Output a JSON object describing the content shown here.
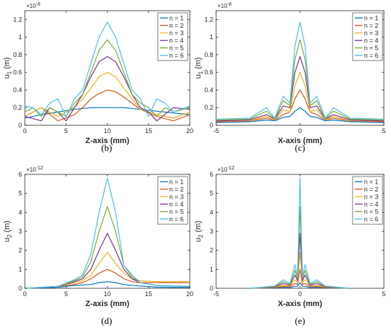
{
  "chart_data": [
    {
      "id": "b",
      "type": "line",
      "caption": "(b)",
      "xlabel": "Z-axis (mm)",
      "ylabel": "u",
      "ylabel_sub": "1",
      "ylabel_unit": " (m)",
      "exponent": "×10",
      "exponent_power": "-8",
      "xlim": [
        0,
        20
      ],
      "ylim": [
        0,
        1.3
      ],
      "xticks": [
        0,
        5,
        10,
        15,
        20
      ],
      "yticks": [
        0,
        0.2,
        0.4,
        0.6,
        0.8,
        1,
        1.2
      ],
      "legend": "top-right",
      "series": [
        {
          "name": "n = 1",
          "color": "#0072BD",
          "x": [
            0,
            2,
            4,
            6,
            8,
            10,
            12,
            14,
            16,
            18,
            20
          ],
          "y": [
            0.08,
            0.12,
            0.15,
            0.18,
            0.2,
            0.2,
            0.2,
            0.18,
            0.16,
            0.14,
            0.12
          ]
        },
        {
          "name": "n = 2",
          "color": "#D95319",
          "x": [
            0,
            2,
            4,
            6,
            7,
            8,
            9,
            10,
            11,
            12,
            13,
            14,
            16,
            18,
            20
          ],
          "y": [
            0.1,
            0.2,
            0.05,
            0.12,
            0.2,
            0.3,
            0.36,
            0.4,
            0.38,
            0.32,
            0.25,
            0.18,
            0.1,
            0.05,
            0.12
          ]
        },
        {
          "name": "n = 3",
          "color": "#EDB120",
          "x": [
            0,
            2,
            4,
            6,
            7,
            8,
            9,
            10,
            11,
            12,
            13,
            14,
            16,
            18,
            20
          ],
          "y": [
            0.1,
            0.2,
            0.1,
            0.2,
            0.3,
            0.42,
            0.55,
            0.6,
            0.55,
            0.42,
            0.3,
            0.18,
            0.12,
            0.08,
            0.15
          ]
        },
        {
          "name": "n = 4",
          "color": "#7E2F8E",
          "x": [
            0,
            2,
            3,
            4,
            5,
            6,
            7,
            8,
            9,
            10,
            11,
            12,
            13,
            14,
            15,
            16,
            18,
            20
          ],
          "y": [
            0.1,
            0.05,
            0.2,
            0.15,
            0.05,
            0.2,
            0.35,
            0.55,
            0.72,
            0.78,
            0.72,
            0.55,
            0.35,
            0.2,
            0.15,
            0.05,
            0.2,
            0.18
          ]
        },
        {
          "name": "n = 5",
          "color": "#77AC30",
          "x": [
            0,
            1,
            2,
            3,
            4,
            5,
            6,
            7,
            8,
            9,
            10,
            11,
            12,
            13,
            14,
            15,
            16,
            17,
            18,
            20
          ],
          "y": [
            0.15,
            0.2,
            0.1,
            0.2,
            0.15,
            0.1,
            0.25,
            0.35,
            0.6,
            0.85,
            0.97,
            0.85,
            0.6,
            0.35,
            0.25,
            0.2,
            0.1,
            0.2,
            0.15,
            0.2
          ]
        },
        {
          "name": "n = 6",
          "color": "#4DBEEE",
          "x": [
            0,
            1,
            2,
            3,
            4,
            5,
            6,
            7,
            8,
            9,
            10,
            11,
            12,
            13,
            14,
            15,
            16,
            17,
            18,
            20
          ],
          "y": [
            0.22,
            0.2,
            0.12,
            0.25,
            0.3,
            0.1,
            0.3,
            0.4,
            0.7,
            1.0,
            1.17,
            1.0,
            0.7,
            0.4,
            0.3,
            0.1,
            0.3,
            0.25,
            0.15,
            0.22
          ]
        }
      ]
    },
    {
      "id": "c",
      "type": "line",
      "caption": "(c)",
      "xlabel": "X-axis (mm)",
      "ylabel": "u",
      "ylabel_sub": "1",
      "ylabel_unit": " (m)",
      "exponent": "×10",
      "exponent_power": "-8",
      "xlim": [
        -5,
        5
      ],
      "ylim": [
        0,
        1.3
      ],
      "xticks": [
        -5,
        0,
        5
      ],
      "yticks": [
        0,
        0.2,
        0.4,
        0.6,
        0.8,
        1,
        1.2
      ],
      "legend": "top-right",
      "series": [
        {
          "name": "n = 1",
          "color": "#0072BD",
          "x": [
            -5,
            -3,
            -2,
            -1.5,
            -1,
            -0.6,
            -0.3,
            0,
            0.3,
            0.6,
            1,
            1.5,
            2,
            3,
            5
          ],
          "y": [
            0.03,
            0.04,
            0.06,
            0.05,
            0.09,
            0.1,
            0.16,
            0.2,
            0.16,
            0.1,
            0.09,
            0.05,
            0.06,
            0.04,
            0.03
          ]
        },
        {
          "name": "n = 2",
          "color": "#D95319",
          "x": [
            -5,
            -3,
            -2,
            -1.5,
            -1,
            -0.6,
            -0.3,
            0,
            0.3,
            0.6,
            1,
            1.5,
            2,
            3,
            5
          ],
          "y": [
            0.04,
            0.05,
            0.08,
            0.06,
            0.12,
            0.15,
            0.3,
            0.4,
            0.3,
            0.15,
            0.12,
            0.06,
            0.08,
            0.05,
            0.04
          ]
        },
        {
          "name": "n = 3",
          "color": "#EDB120",
          "x": [
            -5,
            -3,
            -2,
            -1.5,
            -1,
            -0.6,
            -0.3,
            0,
            0.3,
            0.6,
            1,
            1.5,
            2,
            3,
            5
          ],
          "y": [
            0.05,
            0.05,
            0.1,
            0.06,
            0.18,
            0.15,
            0.45,
            0.6,
            0.45,
            0.15,
            0.18,
            0.06,
            0.1,
            0.05,
            0.05
          ]
        },
        {
          "name": "n = 4",
          "color": "#7E2F8E",
          "x": [
            -5,
            -3,
            -2,
            -1.5,
            -1,
            -0.6,
            -0.3,
            0,
            0.3,
            0.6,
            1,
            1.5,
            2,
            3,
            5
          ],
          "y": [
            0.05,
            0.06,
            0.12,
            0.07,
            0.22,
            0.2,
            0.6,
            0.78,
            0.6,
            0.2,
            0.22,
            0.07,
            0.12,
            0.06,
            0.05
          ]
        },
        {
          "name": "n = 5",
          "color": "#77AC30",
          "x": [
            -5,
            -3,
            -2,
            -1.5,
            -1,
            -0.6,
            -0.3,
            0,
            0.3,
            0.6,
            1,
            1.5,
            2,
            3,
            5
          ],
          "y": [
            0.06,
            0.07,
            0.16,
            0.07,
            0.28,
            0.22,
            0.75,
            0.97,
            0.75,
            0.22,
            0.28,
            0.07,
            0.16,
            0.07,
            0.06
          ]
        },
        {
          "name": "n = 6",
          "color": "#4DBEEE",
          "x": [
            -5,
            -3,
            -2,
            -1.5,
            -1,
            -0.6,
            -0.3,
            0,
            0.3,
            0.6,
            1,
            1.5,
            2,
            3,
            5
          ],
          "y": [
            0.07,
            0.08,
            0.2,
            0.08,
            0.33,
            0.25,
            0.9,
            1.17,
            0.9,
            0.25,
            0.33,
            0.08,
            0.2,
            0.08,
            0.07
          ]
        }
      ]
    },
    {
      "id": "d",
      "type": "line",
      "caption": "(d)",
      "xlabel": "Z-axis (mm)",
      "ylabel": "u",
      "ylabel_sub": "2",
      "ylabel_unit": " (m)",
      "exponent": "×10",
      "exponent_power": "-12",
      "xlim": [
        0,
        20
      ],
      "ylim": [
        0,
        6
      ],
      "xticks": [
        0,
        5,
        10,
        15,
        20
      ],
      "yticks": [
        0,
        1,
        2,
        3,
        4,
        5,
        6
      ],
      "legend": "top-right",
      "series": [
        {
          "name": "n = 1",
          "color": "#0072BD",
          "x": [
            0,
            4,
            6,
            8,
            9,
            10,
            11,
            12,
            14,
            16,
            20
          ],
          "y": [
            0,
            0.05,
            0.15,
            0.2,
            0.3,
            0.35,
            0.3,
            0.2,
            0.12,
            0.06,
            0.05
          ]
        },
        {
          "name": "n = 2",
          "color": "#D95319",
          "x": [
            0,
            4,
            6,
            7,
            8,
            9,
            10,
            11,
            12,
            13,
            14,
            16,
            20
          ],
          "y": [
            0,
            0.1,
            0.2,
            0.3,
            0.5,
            0.8,
            1.0,
            0.8,
            0.5,
            0.35,
            0.3,
            0.3,
            0.3
          ]
        },
        {
          "name": "n = 3",
          "color": "#EDB120",
          "x": [
            0,
            4,
            6,
            7,
            8,
            9,
            10,
            11,
            12,
            13,
            14,
            16,
            20
          ],
          "y": [
            0,
            0.1,
            0.3,
            0.4,
            0.7,
            1.3,
            1.9,
            1.3,
            0.8,
            0.5,
            0.4,
            0.35,
            0.35
          ]
        },
        {
          "name": "n = 4",
          "color": "#7E2F8E",
          "x": [
            0,
            4,
            6,
            7,
            8,
            9,
            10,
            11,
            12,
            13,
            14,
            16,
            20
          ],
          "y": [
            0,
            0.1,
            0.35,
            0.5,
            1.0,
            2.0,
            2.9,
            2.0,
            1.0,
            0.5,
            0.3,
            0.15,
            0.1
          ]
        },
        {
          "name": "n = 5",
          "color": "#77AC30",
          "x": [
            0,
            4,
            6,
            7,
            8,
            9,
            10,
            11,
            12,
            13,
            14,
            16,
            20
          ],
          "y": [
            0,
            0.1,
            0.4,
            0.6,
            1.4,
            3.0,
            4.3,
            3.0,
            1.2,
            0.6,
            0.3,
            0.15,
            0.1
          ]
        },
        {
          "name": "n = 6",
          "color": "#4DBEEE",
          "x": [
            0,
            4,
            6,
            7,
            8,
            9,
            10,
            11,
            12,
            13,
            14,
            16,
            20
          ],
          "y": [
            0,
            0.1,
            0.45,
            0.7,
            1.8,
            4.0,
            5.8,
            4.0,
            1.2,
            0.7,
            0.3,
            0.15,
            0.1
          ]
        }
      ]
    },
    {
      "id": "e",
      "type": "line",
      "caption": "(e)",
      "xlabel": "X-axis (mm)",
      "ylabel": "u",
      "ylabel_sub": "2",
      "ylabel_unit": " (m)",
      "exponent": "×10",
      "exponent_power": "-12",
      "xlim": [
        -5,
        5
      ],
      "ylim": [
        0,
        6
      ],
      "xticks": [
        -5,
        0,
        5
      ],
      "yticks": [
        0,
        1,
        2,
        3,
        4,
        5,
        6
      ],
      "legend": "top-right",
      "series": [
        {
          "name": "n = 1",
          "color": "#0072BD",
          "x": [
            -3,
            -1.5,
            -1,
            -0.6,
            -0.3,
            -0.15,
            0,
            0.15,
            0.3,
            0.6,
            1,
            1.5,
            3
          ],
          "y": [
            0,
            0.02,
            0.05,
            0.04,
            0.1,
            0.1,
            0.3,
            0.1,
            0.1,
            0.04,
            0.05,
            0.02,
            0
          ]
        },
        {
          "name": "n = 2",
          "color": "#D95319",
          "x": [
            -3,
            -1.5,
            -1,
            -0.6,
            -0.3,
            -0.15,
            0,
            0.15,
            0.3,
            0.6,
            1,
            1.5,
            3
          ],
          "y": [
            0,
            0.04,
            0.1,
            0.08,
            0.25,
            0.2,
            1.0,
            0.2,
            0.25,
            0.08,
            0.1,
            0.04,
            0
          ]
        },
        {
          "name": "n = 3",
          "color": "#EDB120",
          "x": [
            -3,
            -1.5,
            -1,
            -0.6,
            -0.3,
            -0.15,
            0,
            0.15,
            0.3,
            0.6,
            1,
            1.5,
            3
          ],
          "y": [
            0,
            0.06,
            0.15,
            0.1,
            0.45,
            0.3,
            1.9,
            0.3,
            0.45,
            0.1,
            0.15,
            0.06,
            0
          ]
        },
        {
          "name": "n = 4",
          "color": "#7E2F8E",
          "x": [
            -3,
            -1.5,
            -1,
            -0.6,
            -0.3,
            -0.15,
            0,
            0.15,
            0.3,
            0.6,
            1,
            1.5,
            3
          ],
          "y": [
            0,
            0.08,
            0.25,
            0.15,
            0.7,
            0.4,
            2.9,
            0.4,
            0.7,
            0.15,
            0.25,
            0.08,
            0
          ]
        },
        {
          "name": "n = 5",
          "color": "#77AC30",
          "x": [
            -3,
            -1.5,
            -1,
            -0.6,
            -0.3,
            -0.15,
            0,
            0.15,
            0.3,
            0.6,
            1,
            1.5,
            3
          ],
          "y": [
            0,
            0.1,
            0.35,
            0.2,
            0.95,
            0.5,
            4.3,
            0.5,
            0.95,
            0.2,
            0.35,
            0.1,
            0
          ]
        },
        {
          "name": "n = 6",
          "color": "#4DBEEE",
          "x": [
            -3,
            -1.5,
            -1,
            -0.6,
            -0.3,
            -0.15,
            0,
            0.15,
            0.3,
            0.6,
            1,
            1.5,
            3
          ],
          "y": [
            0,
            0.12,
            0.45,
            0.25,
            1.25,
            0.6,
            5.8,
            0.6,
            1.25,
            0.25,
            0.45,
            0.12,
            0
          ]
        }
      ]
    }
  ]
}
